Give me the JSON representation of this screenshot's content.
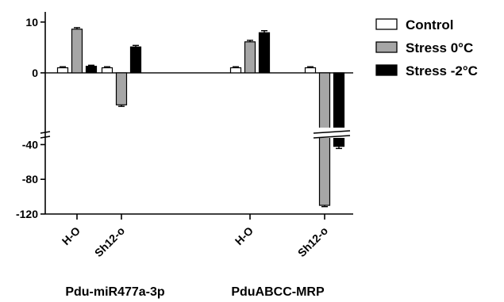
{
  "chart_data": {
    "type": "bar",
    "y_axis": {
      "scale": "broken",
      "upper_segment_range": [
        -10,
        12
      ],
      "lower_segment_range": [
        -120,
        -25
      ],
      "upper_ticks": [
        "10",
        "0"
      ],
      "lower_ticks": [
        "-40",
        "-80",
        "-120"
      ]
    },
    "groups": [
      "Pdu-miR477a-3p",
      "PduABCC-MRP"
    ],
    "categories": [
      "H-O",
      "Sh12-o",
      "H-O",
      "Sh12-o"
    ],
    "series": [
      {
        "name": "Control",
        "values": [
          1,
          1,
          1,
          1
        ],
        "errors": [
          0.2,
          0.2,
          0.2,
          0.2
        ],
        "color": "#ffffff"
      },
      {
        "name": "Stress 0°C",
        "values": [
          8.6,
          -6.3,
          6.1,
          -110
        ],
        "errors": [
          0.3,
          0.3,
          0.3,
          1.5
        ],
        "color": "#a6a6a6"
      },
      {
        "name": "Stress -2°C",
        "values": [
          1.3,
          5.1,
          7.9,
          -42
        ],
        "errors": [
          0.2,
          0.3,
          0.4,
          2.5
        ],
        "color": "#000000"
      }
    ],
    "legend_position": "top-right",
    "grid": false
  }
}
